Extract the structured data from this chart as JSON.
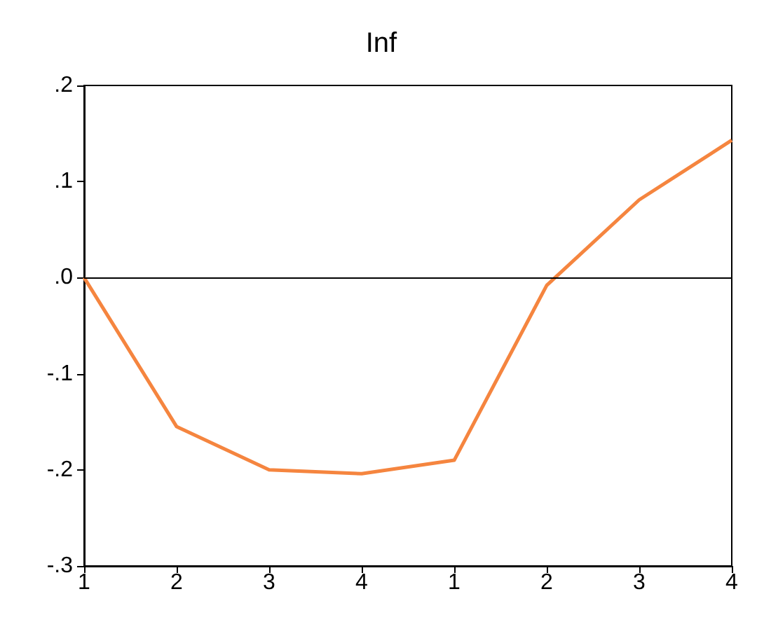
{
  "chart_data": {
    "type": "line",
    "title": "Inf",
    "categories": [
      "1",
      "2",
      "3",
      "4",
      "1",
      "2",
      "3",
      "4"
    ],
    "series": [
      {
        "color": "#f5853f",
        "values": [
          0,
          -0.155,
          -0.2,
          -0.204,
          -0.19,
          -0.008,
          0.081,
          0.143
        ]
      }
    ],
    "ylim": [
      -0.3,
      0.2
    ],
    "yticks": [
      {
        "value": -0.3,
        "label": "-.3"
      },
      {
        "value": -0.2,
        "label": "-.2"
      },
      {
        "value": -0.1,
        "label": "-.1"
      },
      {
        "value": 0,
        "label": ".0"
      },
      {
        "value": 0.1,
        "label": ".1"
      },
      {
        "value": 0.2,
        "label": ".2"
      }
    ],
    "ref_lines": [
      {
        "axis": "y",
        "value": 0,
        "color": "#000000"
      }
    ],
    "grid": false,
    "marker": "none",
    "line_style": "solid"
  }
}
